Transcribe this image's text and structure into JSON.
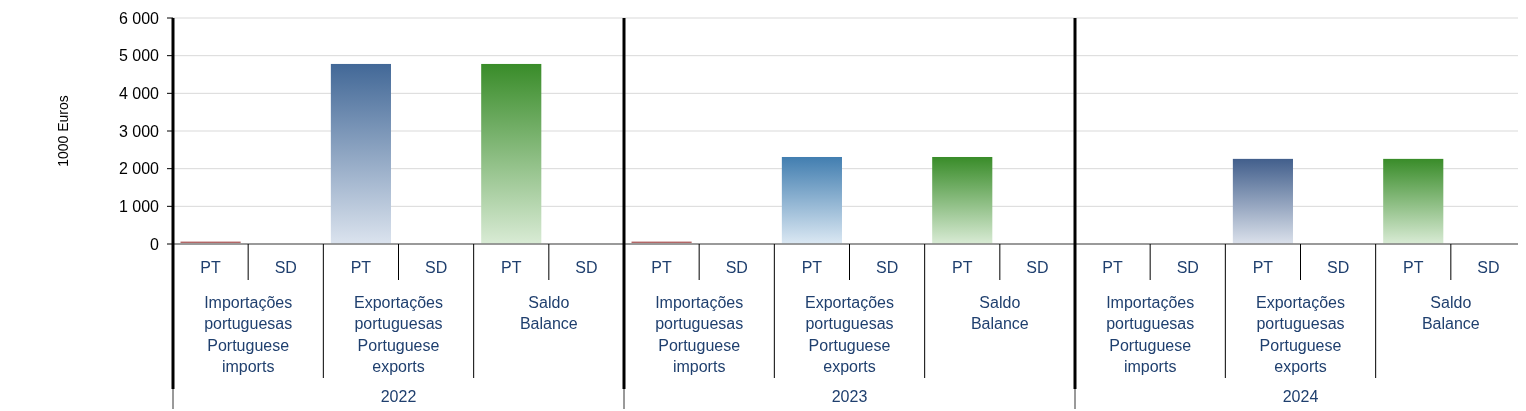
{
  "chart_data": {
    "type": "bar",
    "ylabel": "1000 Euros",
    "categories": [
      "PT",
      "SD",
      "PT",
      "SD",
      "PT",
      "SD",
      "PT",
      "SD",
      "PT",
      "SD",
      "PT",
      "SD",
      "PT",
      "SD",
      "PT",
      "SD",
      "PT",
      "SD"
    ],
    "values": [
      20,
      null,
      4780,
      null,
      4780,
      null,
      20,
      null,
      2310,
      null,
      2310,
      null,
      null,
      null,
      2260,
      null,
      2260,
      null
    ],
    "colors": [
      "#8b0000",
      "#8b0000",
      "#4a74a8",
      "#4a74a8",
      "#3f9c2e",
      "#3f9c2e",
      "#8b0000",
      "#8b0000",
      "#4a8cc4",
      "#4a8cc4",
      "#3f9c2e",
      "#3f9c2e",
      "#8b0000",
      "#8b0000",
      "#4a6a9c",
      "#4a6a9c",
      "#3f9c2e",
      "#3f9c2e"
    ],
    "annotations": [
      "Importações portuguesas Portuguese imports",
      "Exportações portuguesas Portuguese exports",
      "Saldo Balance",
      "Importações portuguesas Portuguese imports",
      "Exportações portuguesas Portuguese exports",
      "Saldo Balance",
      "Importações portuguesas Portuguese imports",
      "Exportações portuguesas Portuguese exports",
      "Saldo Balance",
      "2022",
      "2023",
      "2024"
    ],
    "ylim": [
      0,
      6000
    ],
    "yticks": [
      {
        "value": 0,
        "label": "0"
      },
      {
        "value": 1000,
        "label": "1 000"
      },
      {
        "value": 2000,
        "label": "2 000"
      },
      {
        "value": 3000,
        "label": "3 000"
      },
      {
        "value": 4000,
        "label": "4 000"
      },
      {
        "value": 5000,
        "label": "5 000"
      },
      {
        "value": 6000,
        "label": "6 000"
      }
    ],
    "grid": "y"
  }
}
